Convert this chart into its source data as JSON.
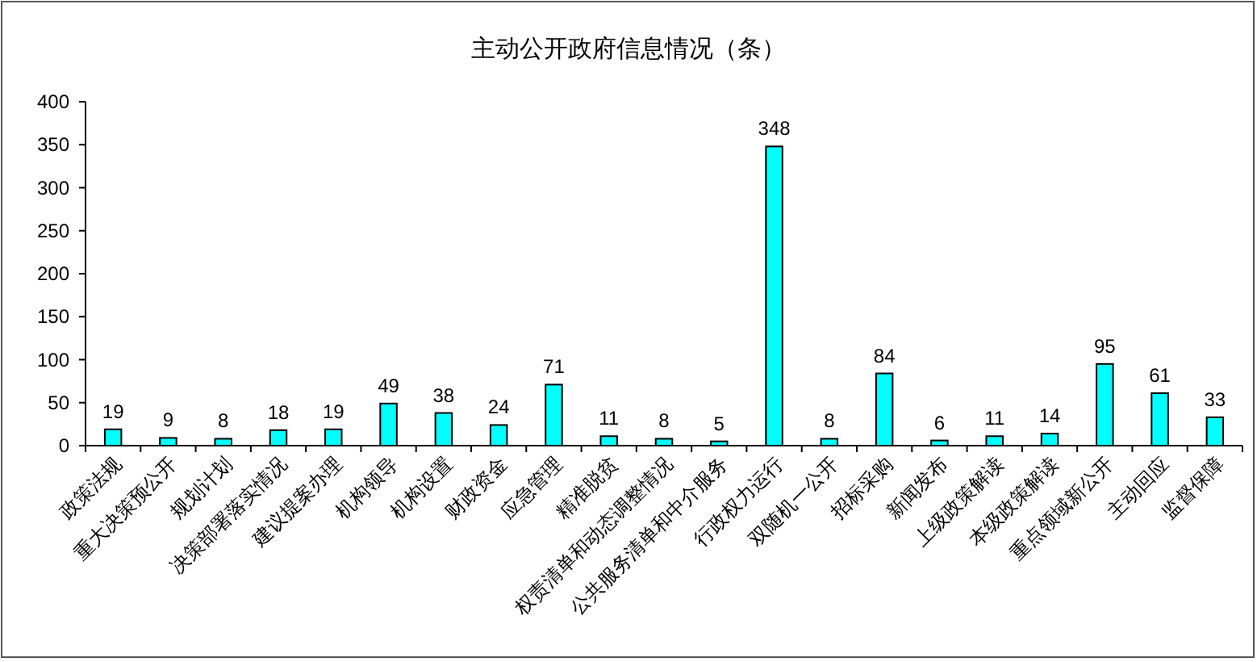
{
  "chart_data": {
    "type": "bar",
    "title": "主动公开政府信息情况（条）",
    "categories": [
      "政策法规",
      "重大决策预公开",
      "规划计划",
      "决策部署落实情况",
      "建议提案办理",
      "机构领导",
      "机构设置",
      "财政资金",
      "应急管理",
      "精准脱贫",
      "权责清单和动态调整情况",
      "公共服务清单和中介服务",
      "行政权力运行",
      "双随机一公开",
      "招标采购",
      "新闻发布",
      "上级政策解读",
      "本级政策解读",
      "重点领域新公开",
      "主动回应",
      "监督保障"
    ],
    "values": [
      19,
      9,
      8,
      18,
      19,
      49,
      38,
      24,
      71,
      11,
      8,
      5,
      348,
      8,
      84,
      6,
      11,
      14,
      95,
      61,
      33
    ],
    "color": "#00ffff",
    "ylim": [
      0,
      400
    ],
    "yticks": [
      0,
      50,
      100,
      150,
      200,
      250,
      300,
      350,
      400
    ],
    "data_labels": true
  }
}
